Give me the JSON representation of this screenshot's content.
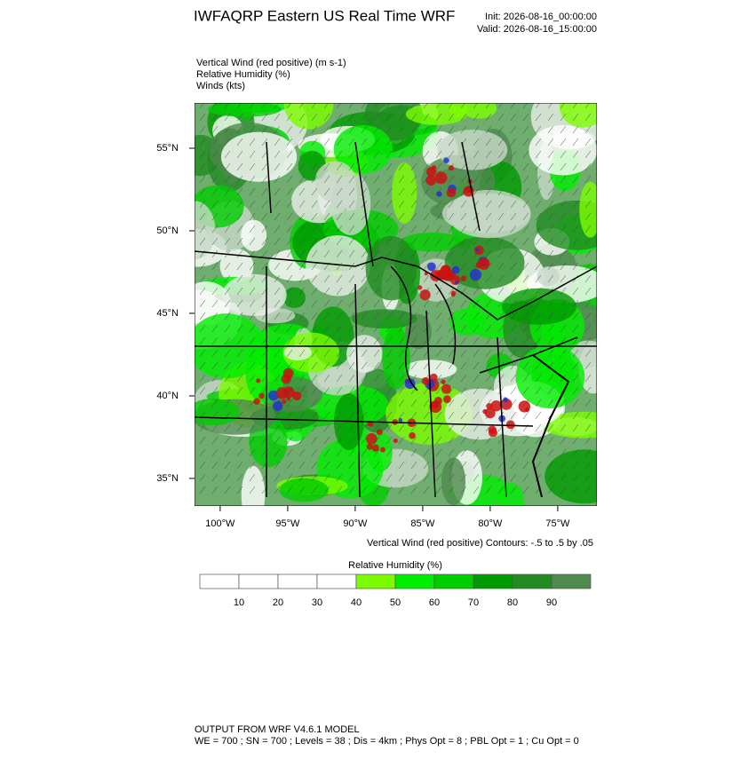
{
  "header": {
    "title": "IWFAQRP Eastern US Real Time WRF",
    "init": "Init: 2026-08-16_00:00:00",
    "valid": "Valid: 2026-08-16_15:00:00"
  },
  "fields": [
    "Vertical Wind (red positive)   (m s-1)",
    "Relative Humidity   (%)",
    "Winds   (kts)"
  ],
  "map": {
    "xlim": [
      -101.9,
      -72.1
    ],
    "ylim": [
      33.33,
      57.74
    ],
    "xticks": [
      {
        "value": -100,
        "label": "100°W"
      },
      {
        "value": -95,
        "label": "95°W"
      },
      {
        "value": -90,
        "label": "90°W"
      },
      {
        "value": -85,
        "label": "85°W"
      },
      {
        "value": -80,
        "label": "80°W"
      },
      {
        "value": -75,
        "label": "75°W"
      }
    ],
    "yticks": [
      {
        "value": 35,
        "label": "35°N"
      },
      {
        "value": 40,
        "label": "40°N"
      },
      {
        "value": 45,
        "label": "45°N"
      },
      {
        "value": 50,
        "label": "50°N"
      },
      {
        "value": 55,
        "label": "55°N"
      }
    ],
    "contour_note": "Vertical Wind (red positive) Contours: -.5 to .5 by .05"
  },
  "colorbar": {
    "title": "Relative Humidity  (%)",
    "levels": [
      10,
      20,
      30,
      40,
      50,
      60,
      70,
      80,
      90
    ],
    "colors": [
      "#ffffff",
      "#ffffff",
      "#ffffff",
      "#ffffff",
      "#7cfc00",
      "#00ee00",
      "#00cd00",
      "#009a00",
      "#228b22",
      "#4f8a4f"
    ]
  },
  "footer": {
    "line1": "OUTPUT FROM WRF V4.6.1 MODEL",
    "line2": "WE = 700 ; SN = 700 ; Levels = 38 ; Dis = 4km ; Phys Opt = 8 ; PBL Opt = 1 ; Cu Opt = 0"
  }
}
